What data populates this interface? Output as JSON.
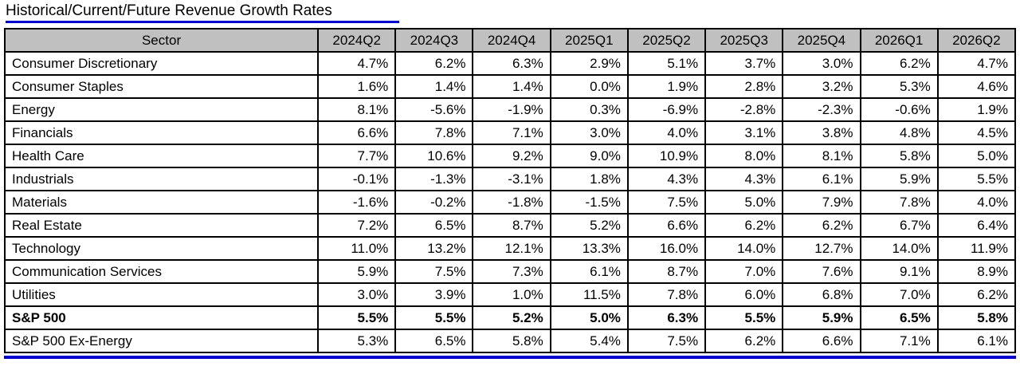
{
  "title": "Historical/Current/Future Revenue Growth Rates",
  "colors": {
    "accent_line": "#0000cc",
    "header_bg": "#c0c0c0",
    "border": "#000000"
  },
  "chart_data": {
    "type": "table",
    "title": "Historical/Current/Future Revenue Growth Rates",
    "columns": [
      "Sector",
      "2024Q2",
      "2024Q3",
      "2024Q4",
      "2025Q1",
      "2025Q2",
      "2025Q3",
      "2025Q4",
      "2026Q1",
      "2026Q2"
    ],
    "rows": [
      {
        "sector": "Consumer Discretionary",
        "bold": false,
        "values": [
          "4.7%",
          "6.2%",
          "6.3%",
          "2.9%",
          "5.1%",
          "3.7%",
          "3.0%",
          "6.2%",
          "4.7%"
        ]
      },
      {
        "sector": "Consumer Staples",
        "bold": false,
        "values": [
          "1.6%",
          "1.4%",
          "1.4%",
          "0.0%",
          "1.9%",
          "2.8%",
          "3.2%",
          "5.3%",
          "4.6%"
        ]
      },
      {
        "sector": "Energy",
        "bold": false,
        "values": [
          "8.1%",
          "-5.6%",
          "-1.9%",
          "0.3%",
          "-6.9%",
          "-2.8%",
          "-2.3%",
          "-0.6%",
          "1.9%"
        ]
      },
      {
        "sector": "Financials",
        "bold": false,
        "values": [
          "6.6%",
          "7.8%",
          "7.1%",
          "3.0%",
          "4.0%",
          "3.1%",
          "3.8%",
          "4.8%",
          "4.5%"
        ]
      },
      {
        "sector": "Health Care",
        "bold": false,
        "values": [
          "7.7%",
          "10.6%",
          "9.2%",
          "9.0%",
          "10.9%",
          "8.0%",
          "8.1%",
          "5.8%",
          "5.0%"
        ]
      },
      {
        "sector": "Industrials",
        "bold": false,
        "values": [
          "-0.1%",
          "-1.3%",
          "-3.1%",
          "1.8%",
          "4.3%",
          "4.3%",
          "6.1%",
          "5.9%",
          "5.5%"
        ]
      },
      {
        "sector": "Materials",
        "bold": false,
        "values": [
          "-1.6%",
          "-0.2%",
          "-1.8%",
          "-1.5%",
          "7.5%",
          "5.0%",
          "7.9%",
          "7.8%",
          "4.0%"
        ]
      },
      {
        "sector": "Real Estate",
        "bold": false,
        "values": [
          "7.2%",
          "6.5%",
          "8.7%",
          "5.2%",
          "6.6%",
          "6.2%",
          "6.2%",
          "6.7%",
          "6.4%"
        ]
      },
      {
        "sector": "Technology",
        "bold": false,
        "values": [
          "11.0%",
          "13.2%",
          "12.1%",
          "13.3%",
          "16.0%",
          "14.0%",
          "12.7%",
          "14.0%",
          "11.9%"
        ]
      },
      {
        "sector": "Communication Services",
        "bold": false,
        "values": [
          "5.9%",
          "7.5%",
          "7.3%",
          "6.1%",
          "8.7%",
          "7.0%",
          "7.6%",
          "9.1%",
          "8.9%"
        ]
      },
      {
        "sector": "Utilities",
        "bold": false,
        "values": [
          "3.0%",
          "3.9%",
          "1.0%",
          "11.5%",
          "7.8%",
          "6.0%",
          "6.8%",
          "7.0%",
          "6.2%"
        ]
      },
      {
        "sector": "S&P 500",
        "bold": true,
        "values": [
          "5.5%",
          "5.5%",
          "5.2%",
          "5.0%",
          "6.3%",
          "5.5%",
          "5.9%",
          "6.5%",
          "5.8%"
        ]
      },
      {
        "sector": "S&P 500 Ex-Energy",
        "bold": false,
        "values": [
          "5.3%",
          "6.5%",
          "5.8%",
          "5.4%",
          "7.5%",
          "6.2%",
          "6.6%",
          "7.1%",
          "6.1%"
        ]
      }
    ]
  }
}
